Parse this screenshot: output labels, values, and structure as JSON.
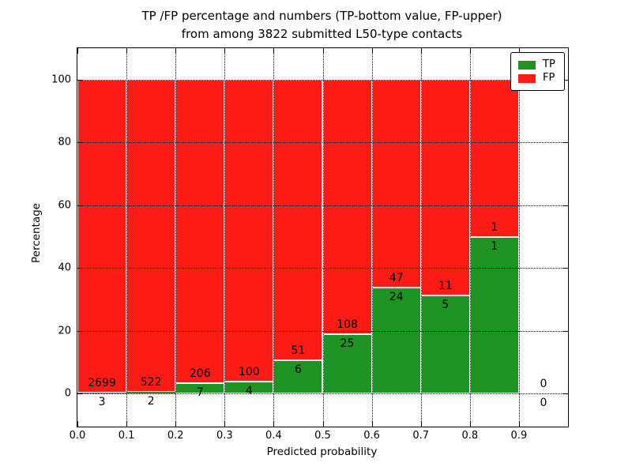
{
  "title": {
    "line1": "TP /FP percentage and numbers (TP-bottom value, FP-upper)",
    "line2": "from among 3822 submitted L50-type contacts"
  },
  "chart_data": {
    "type": "bar",
    "subtype": "stacked-percent-histogram",
    "title": "TP /FP percentage and numbers (TP-bottom value, FP-upper) from among 3822 submitted L50-type contacts",
    "xlabel": "Predicted probability",
    "ylabel": "Percentage",
    "total_submitted": 3822,
    "bin_width": 0.1,
    "bin_starts": [
      0.0,
      0.1,
      0.2,
      0.3,
      0.4,
      0.5,
      0.6,
      0.7,
      0.8,
      0.9
    ],
    "series": [
      {
        "name": "TP",
        "color": "#1e9222",
        "counts": [
          3,
          2,
          7,
          4,
          6,
          25,
          24,
          5,
          1,
          0
        ]
      },
      {
        "name": "FP",
        "color": "#fc1c15",
        "counts": [
          2699,
          522,
          206,
          100,
          51,
          108,
          47,
          11,
          1,
          0
        ]
      }
    ],
    "tp_percent": [
      0.11,
      0.38,
      3.29,
      3.85,
      10.53,
      18.8,
      33.8,
      31.25,
      50.0,
      null
    ],
    "xticks": [
      "0.0",
      "0.1",
      "0.2",
      "0.3",
      "0.4",
      "0.5",
      "0.6",
      "0.7",
      "0.8",
      "0.9"
    ],
    "yticks": [
      "0",
      "20",
      "40",
      "60",
      "80",
      "100"
    ],
    "xlim": [
      0.0,
      1.0
    ],
    "ylim": [
      -10.6,
      110.1
    ],
    "grid": "dotted",
    "legend": {
      "position": "upper right",
      "entries": [
        "TP",
        "FP"
      ]
    },
    "bar_edge_color": "#ffffff"
  }
}
